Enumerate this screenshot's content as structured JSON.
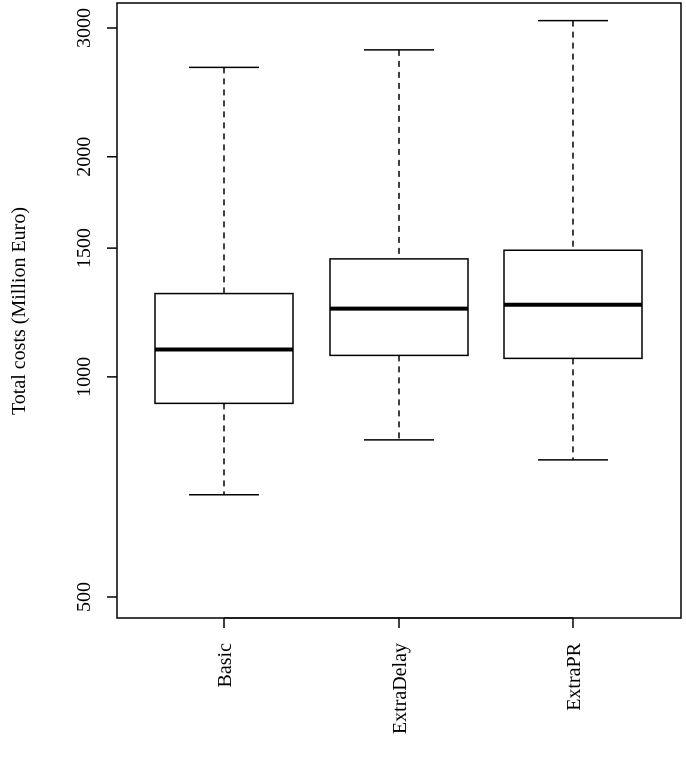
{
  "chart_data": {
    "type": "boxplot",
    "title": "",
    "xlabel": "",
    "ylabel": "Total costs (Million Euro)",
    "yscale": "log",
    "ylim": [
      470,
      3300
    ],
    "yticks": [
      500,
      1000,
      1500,
      2000,
      3000
    ],
    "ytick_labels": [
      "500",
      "1000",
      "1500",
      "2000",
      "3000"
    ],
    "categories": [
      "Basic",
      "ExtraDelay",
      "ExtraPR"
    ],
    "boxes": [
      {
        "category": "Basic",
        "whisker_low": 690,
        "q1": 920,
        "median": 1090,
        "q3": 1300,
        "whisker_high": 2650
      },
      {
        "category": "ExtraDelay",
        "whisker_low": 820,
        "q1": 1070,
        "median": 1240,
        "q3": 1450,
        "whisker_high": 2800
      },
      {
        "category": "ExtraPR",
        "whisker_low": 770,
        "q1": 1060,
        "median": 1255,
        "q3": 1490,
        "whisker_high": 3070
      }
    ],
    "grid": false,
    "colors": {
      "stroke": "#000000",
      "box_fill": "#ffffff"
    }
  }
}
